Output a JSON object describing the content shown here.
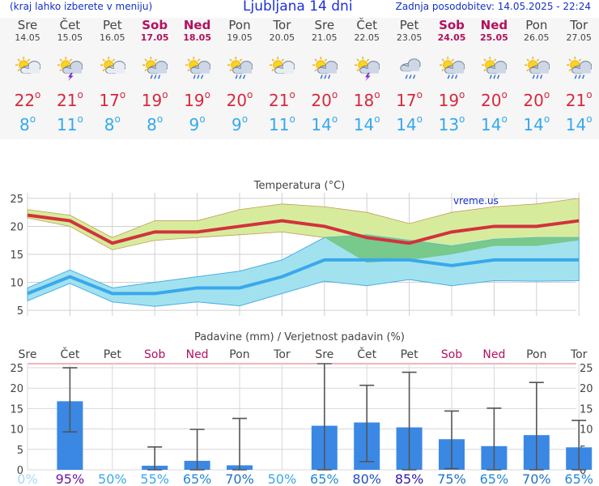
{
  "header": {
    "left_note": "(kraj lahko izberete v meniju)",
    "title": "Ljubljana 14 dni",
    "updated": "Zadnja posodobitev: 14.05.2025 - 22:24"
  },
  "colors": {
    "max_line": "#d2323c",
    "min_line": "#3aa8ec",
    "max_band": "#d6ec9c",
    "min_band": "#a2e2ef",
    "overlap_band": "#77c98c",
    "precip_bar": "#3a88e4",
    "weekend": "#b2105e"
  },
  "forecast": [
    {
      "day": "Sre",
      "date": "14.05",
      "weekend": false,
      "icon": "sun-cloud-icon",
      "max": "22",
      "min": "8"
    },
    {
      "day": "Čet",
      "date": "15.05",
      "weekend": false,
      "icon": "sun-cloud-thunder-icon",
      "max": "21",
      "min": "11"
    },
    {
      "day": "Pet",
      "date": "16.05",
      "weekend": false,
      "icon": "sun-cloud-icon",
      "max": "17",
      "min": "8"
    },
    {
      "day": "Sob",
      "date": "17.05",
      "weekend": true,
      "icon": "sun-cloud-rain-icon",
      "max": "19",
      "min": "8"
    },
    {
      "day": "Ned",
      "date": "18.05",
      "weekend": true,
      "icon": "sun-cloud-rain-icon",
      "max": "19",
      "min": "9"
    },
    {
      "day": "Pon",
      "date": "19.05",
      "weekend": false,
      "icon": "sun-cloud-rain-icon",
      "max": "20",
      "min": "9"
    },
    {
      "day": "Tor",
      "date": "20.05",
      "weekend": false,
      "icon": "sun-cloud-icon",
      "max": "21",
      "min": "11"
    },
    {
      "day": "Sre",
      "date": "21.05",
      "weekend": false,
      "icon": "sun-cloud-rain-icon",
      "max": "20",
      "min": "14"
    },
    {
      "day": "Čet",
      "date": "22.05",
      "weekend": false,
      "icon": "sun-cloud-thunder-icon",
      "max": "18",
      "min": "14"
    },
    {
      "day": "Pet",
      "date": "23.05",
      "weekend": false,
      "icon": "cloud-rain-icon",
      "max": "17",
      "min": "14"
    },
    {
      "day": "Sob",
      "date": "24.05",
      "weekend": true,
      "icon": "sun-cloud-rain-icon",
      "max": "19",
      "min": "13"
    },
    {
      "day": "Ned",
      "date": "25.05",
      "weekend": true,
      "icon": "sun-cloud-rain-icon",
      "max": "20",
      "min": "14"
    },
    {
      "day": "Pon",
      "date": "26.05",
      "weekend": false,
      "icon": "sun-cloud-rain-icon",
      "max": "20",
      "min": "14"
    },
    {
      "day": "Tor",
      "date": "27.05",
      "weekend": false,
      "icon": "sun-cloud-rain-icon",
      "max": "21",
      "min": "14"
    }
  ],
  "chart_data": [
    {
      "type": "line",
      "title": "Temperatura (°C)",
      "watermark": "vreme.us",
      "x": [
        "Sre 14.05",
        "Čet 15.05",
        "Pet 16.05",
        "Sob 17.05",
        "Ned 18.05",
        "Pon 19.05",
        "Tor 20.05",
        "Sre 21.05",
        "Čet 22.05",
        "Pet 23.05",
        "Sob 24.05",
        "Ned 25.05",
        "Pon 26.05",
        "Tor 27.05"
      ],
      "ylim": [
        4,
        26
      ],
      "yticks": [
        5,
        10,
        15,
        20,
        25
      ],
      "grid": true,
      "series": [
        {
          "values": [
            22,
            21,
            17,
            19,
            19,
            20,
            21,
            20,
            18,
            17,
            19,
            20,
            20,
            21
          ]
        },
        {
          "values": [
            8,
            11,
            8,
            8,
            9,
            9,
            11,
            14,
            14,
            14,
            13,
            14,
            14,
            14
          ]
        }
      ],
      "bands": [
        {
          "upper": [
            23,
            22,
            18,
            21,
            21,
            23,
            24,
            23.5,
            22.5,
            20.5,
            22.5,
            23.5,
            24,
            25
          ],
          "lower": [
            21.5,
            20,
            15.8,
            17.5,
            18,
            18.5,
            19,
            18,
            13.5,
            14,
            15,
            16.5,
            16.5,
            17.5
          ]
        },
        {
          "upper": [
            9,
            12.2,
            9,
            10,
            11,
            12,
            14,
            18,
            18.5,
            17.5,
            16.5,
            17.7,
            18,
            18
          ],
          "lower": [
            6.7,
            9.8,
            6.5,
            5.7,
            6.5,
            5.8,
            8,
            10.2,
            9.4,
            10.5,
            9.4,
            10.3,
            10.2,
            10.3
          ]
        }
      ]
    },
    {
      "type": "bar",
      "title": "Padavine (mm) / Verjetnost padavin (%)",
      "categories": [
        "Sre",
        "Čet",
        "Pet",
        "Sob",
        "Ned",
        "Pon",
        "Tor",
        "Sre",
        "Čet",
        "Pet",
        "Sob",
        "Ned",
        "Pon",
        "Tor"
      ],
      "ylim": [
        0,
        26
      ],
      "yticks": [
        0,
        5,
        10,
        15,
        20,
        25
      ],
      "values": [
        0,
        16.8,
        0,
        1,
        2.2,
        1.1,
        0,
        10.8,
        11.6,
        10.4,
        7.5,
        5.8,
        8.5,
        5.5
      ],
      "error_low": [
        0,
        9.3,
        0,
        0,
        0,
        0,
        0,
        0,
        2,
        0,
        0.3,
        0,
        0,
        0
      ],
      "error_high": [
        0,
        25,
        0,
        5.6,
        9.9,
        12.6,
        0,
        26,
        20.7,
        23.9,
        14.4,
        15.1,
        21.4,
        12.1
      ],
      "probability": [
        "0%",
        "95%",
        "50%",
        "55%",
        "65%",
        "70%",
        "50%",
        "65%",
        "80%",
        "85%",
        "75%",
        "65%",
        "70%",
        "65%"
      ],
      "probability_colors": [
        "#a6d8f4",
        "#7015a8",
        "#3aa8ec",
        "#3aa8ec",
        "#2488d4",
        "#2070c4",
        "#3aa8ec",
        "#2488d4",
        "#1e50c0",
        "#3416a8",
        "#2070c4",
        "#2488d4",
        "#2070c4",
        "#2488d4"
      ]
    }
  ]
}
